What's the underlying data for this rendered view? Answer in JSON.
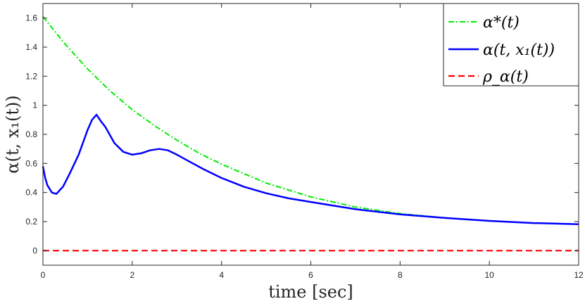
{
  "chart_data": {
    "type": "line",
    "title": "",
    "xlabel": "time [sec]",
    "ylabel": "α(t, x₁(t))",
    "xlim": [
      0,
      12
    ],
    "ylim": [
      -0.1,
      1.7
    ],
    "x_ticks": [
      0,
      2,
      4,
      6,
      8,
      10,
      12
    ],
    "x_tick_labels": [
      "0",
      "2",
      "4",
      "6",
      "8",
      "10",
      "12"
    ],
    "y_ticks": [
      0,
      0.2,
      0.4,
      0.6,
      0.8,
      1,
      1.2,
      1.4,
      1.6
    ],
    "y_tick_labels": [
      "0",
      "0.2",
      "0.4",
      "0.6",
      "0.8",
      "1",
      "1.2",
      "1.4",
      "1.6"
    ],
    "grid": false,
    "legend_position": "top-right",
    "series": [
      {
        "name": "α*(t)",
        "color": "#00ee00",
        "style": "dash-dot",
        "x": [
          0,
          0.5,
          1,
          1.5,
          2,
          2.5,
          3,
          3.5,
          4,
          5,
          6,
          7,
          8,
          9,
          10,
          11,
          12
        ],
        "y": [
          1.61,
          1.42,
          1.25,
          1.1,
          0.97,
          0.86,
          0.76,
          0.67,
          0.595,
          0.465,
          0.37,
          0.3,
          0.255,
          0.225,
          0.205,
          0.19,
          0.182
        ]
      },
      {
        "name": "α(t, x₁(t))",
        "color": "#0000ff",
        "style": "solid",
        "x": [
          0,
          0.05,
          0.1,
          0.2,
          0.3,
          0.45,
          0.6,
          0.8,
          1.0,
          1.1,
          1.2,
          1.3,
          1.4,
          1.6,
          1.8,
          2.0,
          2.2,
          2.4,
          2.6,
          2.8,
          3.0,
          3.3,
          3.6,
          4.0,
          4.5,
          5.0,
          5.5,
          6.0,
          7.0,
          8.0,
          9.0,
          10.0,
          11.0,
          12.0
        ],
        "y": [
          0.58,
          0.5,
          0.45,
          0.4,
          0.39,
          0.44,
          0.53,
          0.66,
          0.83,
          0.9,
          0.935,
          0.89,
          0.85,
          0.74,
          0.68,
          0.66,
          0.67,
          0.69,
          0.7,
          0.69,
          0.66,
          0.61,
          0.56,
          0.5,
          0.44,
          0.395,
          0.36,
          0.335,
          0.285,
          0.25,
          0.225,
          0.205,
          0.19,
          0.182
        ]
      },
      {
        "name": "ρ_α(t)",
        "color": "#ff0000",
        "style": "dashed",
        "x": [
          0,
          12
        ],
        "y": [
          0,
          0
        ]
      }
    ]
  }
}
